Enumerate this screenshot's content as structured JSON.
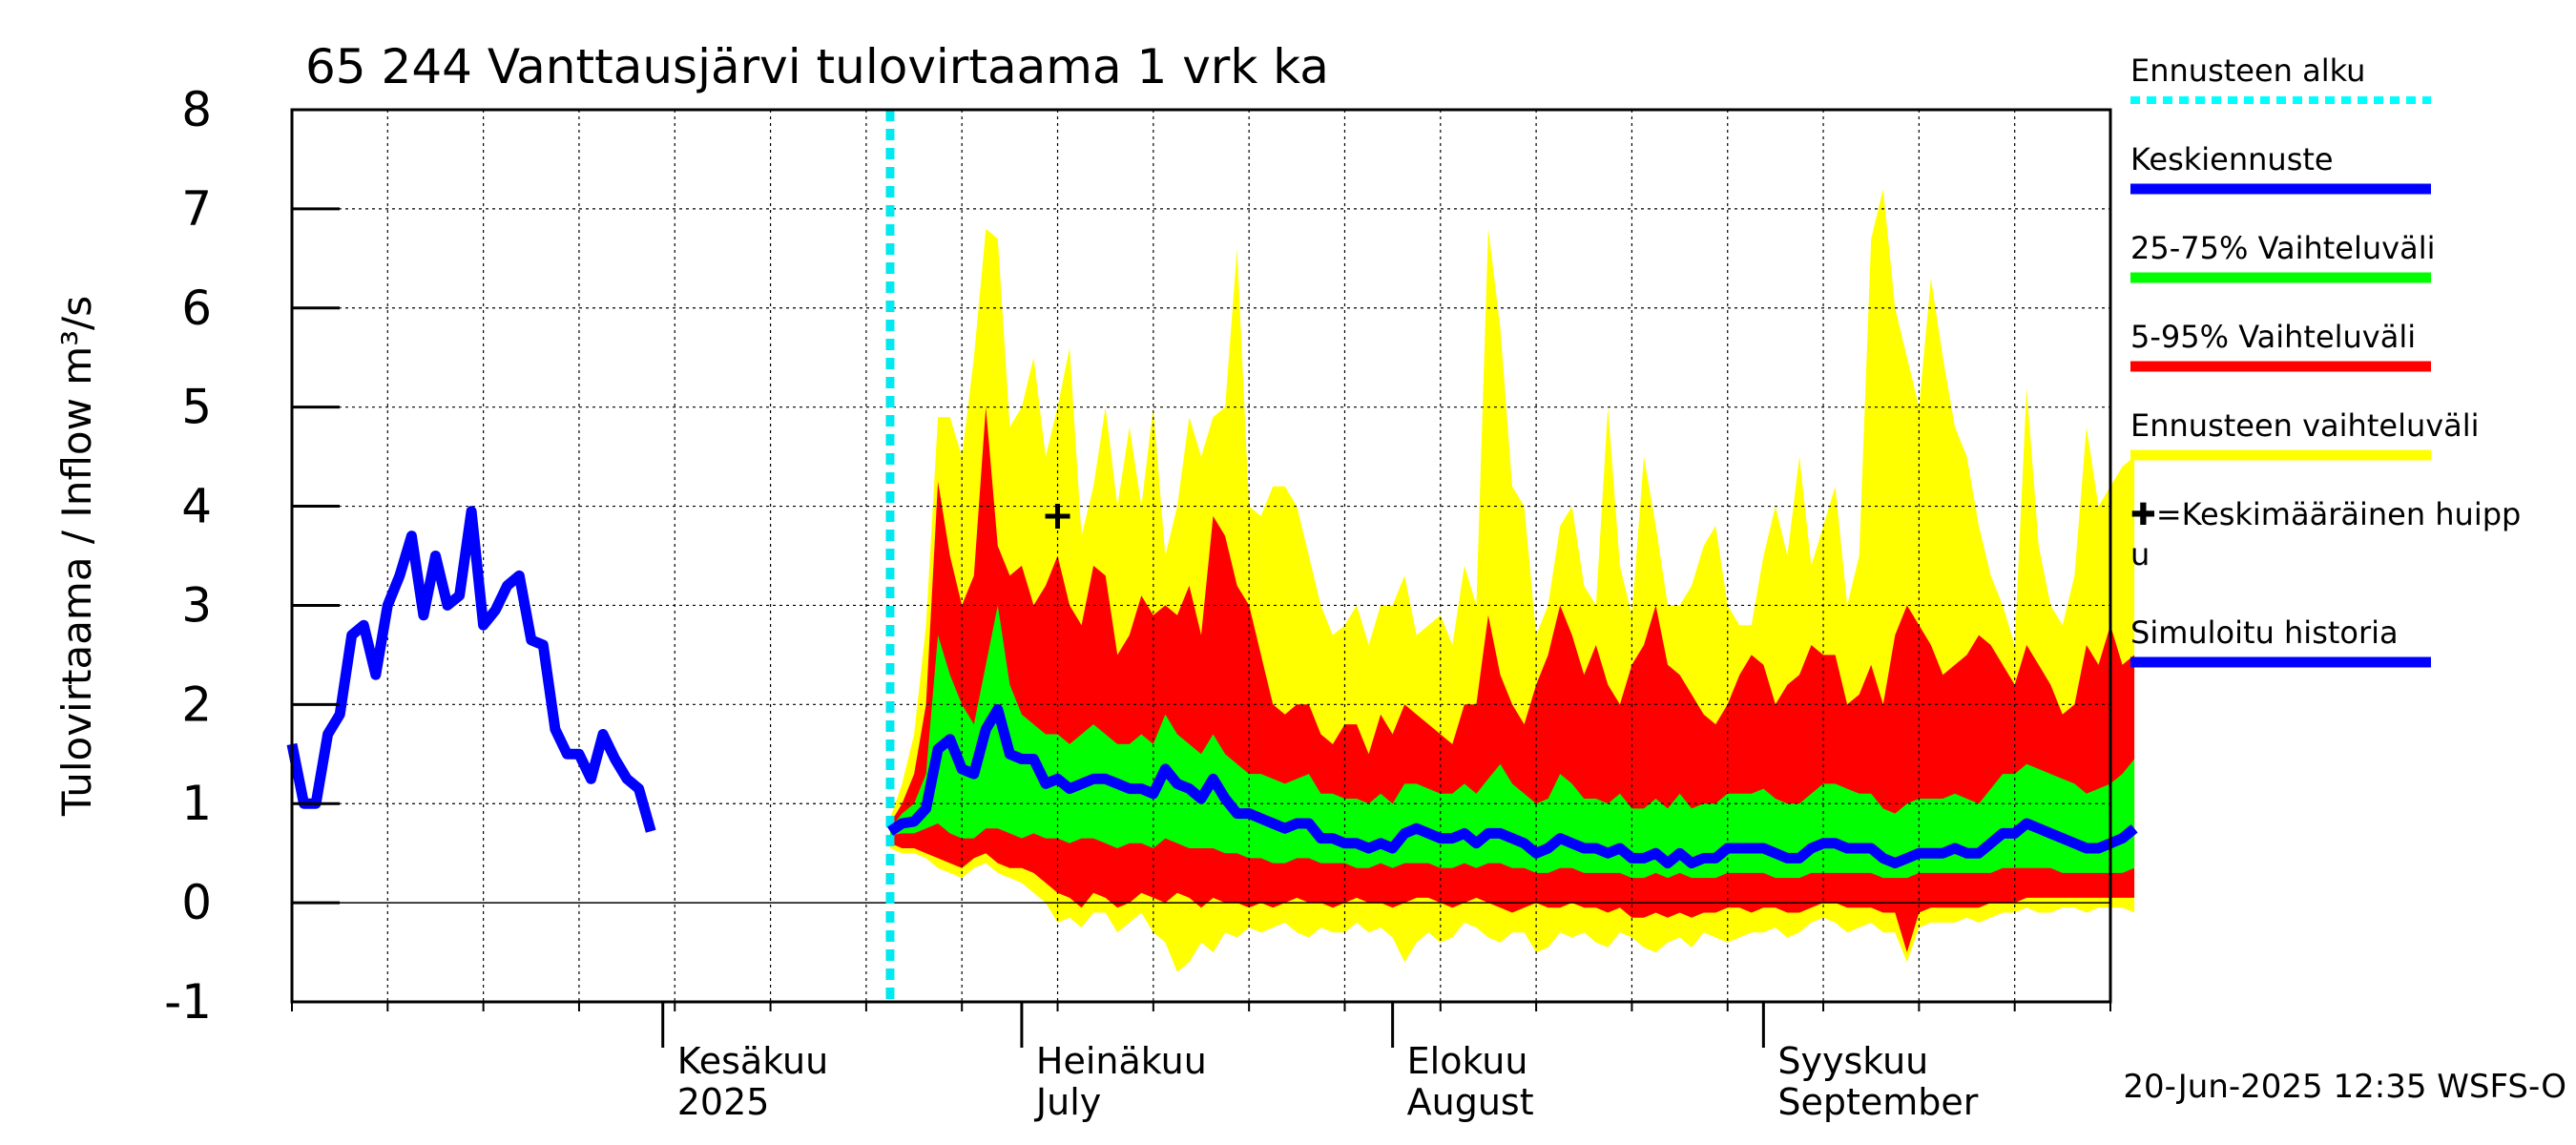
{
  "chart_data": {
    "type": "area",
    "title": "65 244 Vanttausjärvi tulovirtaama 1 vrk ka",
    "ylabel": "Tulovirtaama / Inflow    m³/s",
    "xlabel": "",
    "ylim": [
      -1,
      8
    ],
    "yticks": [
      -1,
      0,
      1,
      2,
      3,
      4,
      5,
      6,
      7,
      8
    ],
    "x_start": "2025-05-01",
    "x_end": "2025-09-30",
    "forecast_start": "2025-06-20",
    "month_labels": [
      {
        "top": "Kesäkuu",
        "bottom": "2025",
        "date": "2025-06-01"
      },
      {
        "top": "Heinäkuu",
        "bottom": "July",
        "date": "2025-07-01"
      },
      {
        "top": "Elokuu",
        "bottom": "August",
        "date": "2025-08-01"
      },
      {
        "top": "Syyskuu",
        "bottom": "September",
        "date": "2025-09-01"
      }
    ],
    "peak_marker": {
      "date": "2025-07-04",
      "value": 3.9
    },
    "history": {
      "name": "Simuloitu historia",
      "start": "2025-05-01",
      "values": [
        1.6,
        1.0,
        1.0,
        1.7,
        1.9,
        2.7,
        2.8,
        2.3,
        3.0,
        3.3,
        3.7,
        2.9,
        3.5,
        3.0,
        3.1,
        3.95,
        2.8,
        2.95,
        3.2,
        3.3,
        2.65,
        2.6,
        1.75,
        1.5,
        1.5,
        1.25,
        1.7,
        1.45,
        1.25,
        1.15,
        0.72
      ]
    },
    "forecast": {
      "start": "2025-06-20",
      "median": [
        0.72,
        0.8,
        0.82,
        0.95,
        1.55,
        1.65,
        1.35,
        1.3,
        1.75,
        1.95,
        1.5,
        1.45,
        1.45,
        1.2,
        1.25,
        1.15,
        1.2,
        1.25,
        1.25,
        1.2,
        1.15,
        1.15,
        1.1,
        1.35,
        1.2,
        1.15,
        1.05,
        1.25,
        1.05,
        0.9,
        0.9,
        0.85,
        0.8,
        0.75,
        0.8,
        0.8,
        0.65,
        0.65,
        0.6,
        0.6,
        0.55,
        0.6,
        0.55,
        0.7,
        0.75,
        0.7,
        0.65,
        0.65,
        0.7,
        0.6,
        0.7,
        0.7,
        0.65,
        0.6,
        0.5,
        0.55,
        0.65,
        0.6,
        0.55,
        0.55,
        0.5,
        0.55,
        0.45,
        0.45,
        0.5,
        0.4,
        0.5,
        0.4,
        0.45,
        0.45,
        0.55,
        0.55,
        0.55,
        0.55,
        0.5,
        0.45,
        0.45,
        0.55,
        0.6,
        0.6,
        0.55,
        0.55,
        0.55,
        0.45,
        0.4,
        0.45,
        0.5,
        0.5,
        0.5,
        0.55,
        0.5,
        0.5,
        0.6,
        0.7,
        0.7,
        0.8,
        0.75,
        0.7,
        0.65,
        0.6,
        0.55,
        0.55,
        0.6,
        0.65,
        0.75
      ],
      "p25": [
        0.68,
        0.7,
        0.7,
        0.75,
        0.8,
        0.7,
        0.65,
        0.65,
        0.75,
        0.75,
        0.7,
        0.65,
        0.7,
        0.65,
        0.65,
        0.6,
        0.65,
        0.65,
        0.6,
        0.55,
        0.6,
        0.6,
        0.55,
        0.65,
        0.6,
        0.55,
        0.55,
        0.55,
        0.5,
        0.5,
        0.45,
        0.45,
        0.4,
        0.4,
        0.45,
        0.45,
        0.4,
        0.4,
        0.4,
        0.35,
        0.35,
        0.4,
        0.35,
        0.4,
        0.4,
        0.4,
        0.35,
        0.35,
        0.4,
        0.35,
        0.4,
        0.4,
        0.35,
        0.35,
        0.3,
        0.3,
        0.35,
        0.35,
        0.3,
        0.3,
        0.3,
        0.3,
        0.25,
        0.25,
        0.3,
        0.25,
        0.3,
        0.25,
        0.25,
        0.25,
        0.3,
        0.3,
        0.3,
        0.3,
        0.25,
        0.25,
        0.25,
        0.3,
        0.3,
        0.3,
        0.3,
        0.3,
        0.3,
        0.25,
        0.25,
        0.25,
        0.3,
        0.3,
        0.3,
        0.3,
        0.3,
        0.3,
        0.3,
        0.35,
        0.35,
        0.35,
        0.35,
        0.35,
        0.3,
        0.3,
        0.3,
        0.3,
        0.3,
        0.3,
        0.35
      ],
      "p75": [
        0.75,
        0.9,
        1.0,
        1.3,
        2.7,
        2.3,
        2.0,
        1.8,
        2.4,
        3.0,
        2.2,
        1.9,
        1.8,
        1.7,
        1.7,
        1.6,
        1.7,
        1.8,
        1.7,
        1.6,
        1.6,
        1.7,
        1.6,
        1.9,
        1.7,
        1.6,
        1.5,
        1.7,
        1.5,
        1.4,
        1.3,
        1.3,
        1.25,
        1.2,
        1.25,
        1.3,
        1.1,
        1.1,
        1.05,
        1.05,
        1.0,
        1.1,
        1.0,
        1.2,
        1.2,
        1.15,
        1.1,
        1.1,
        1.2,
        1.1,
        1.25,
        1.4,
        1.2,
        1.1,
        1.0,
        1.05,
        1.3,
        1.2,
        1.05,
        1.05,
        1.0,
        1.1,
        0.95,
        0.95,
        1.05,
        0.95,
        1.1,
        0.95,
        1.0,
        1.0,
        1.1,
        1.1,
        1.1,
        1.15,
        1.05,
        1.0,
        1.0,
        1.1,
        1.2,
        1.2,
        1.15,
        1.1,
        1.1,
        0.95,
        0.9,
        1.0,
        1.05,
        1.05,
        1.05,
        1.1,
        1.05,
        1.0,
        1.15,
        1.3,
        1.3,
        1.4,
        1.35,
        1.3,
        1.25,
        1.2,
        1.1,
        1.15,
        1.2,
        1.3,
        1.45
      ],
      "p5": [
        0.6,
        0.55,
        0.55,
        0.5,
        0.45,
        0.4,
        0.35,
        0.45,
        0.5,
        0.4,
        0.35,
        0.35,
        0.3,
        0.2,
        0.1,
        0.05,
        -0.05,
        0.1,
        0.05,
        -0.05,
        0.0,
        0.1,
        0.05,
        0.0,
        0.1,
        0.05,
        -0.05,
        0.05,
        0.0,
        0.0,
        -0.05,
        0.0,
        -0.05,
        0.0,
        0.05,
        0.0,
        0.0,
        -0.05,
        0.0,
        0.05,
        0.0,
        0.0,
        -0.05,
        0.0,
        0.05,
        0.05,
        0.0,
        -0.05,
        0.0,
        0.05,
        0.0,
        -0.05,
        -0.1,
        -0.05,
        0.0,
        -0.05,
        -0.05,
        0.0,
        -0.05,
        -0.05,
        -0.1,
        -0.05,
        -0.15,
        -0.15,
        -0.1,
        -0.15,
        -0.1,
        -0.15,
        -0.1,
        -0.1,
        -0.05,
        -0.05,
        -0.1,
        -0.05,
        -0.05,
        -0.1,
        -0.1,
        -0.05,
        0.0,
        0.0,
        -0.05,
        -0.05,
        -0.05,
        -0.1,
        -0.1,
        -0.5,
        -0.1,
        -0.05,
        -0.05,
        -0.05,
        -0.05,
        -0.05,
        0.0,
        0.0,
        0.0,
        0.05,
        0.05,
        0.05,
        0.05,
        0.05,
        0.05,
        0.05,
        0.05,
        0.05,
        0.05
      ],
      "p95": [
        0.8,
        1.0,
        1.3,
        2.0,
        4.25,
        3.5,
        3.0,
        3.3,
        5.0,
        3.6,
        3.3,
        3.4,
        3.0,
        3.2,
        3.5,
        3.0,
        2.8,
        3.4,
        3.3,
        2.5,
        2.7,
        3.1,
        2.9,
        3.0,
        2.9,
        3.2,
        2.7,
        3.9,
        3.7,
        3.2,
        3.0,
        2.5,
        2.0,
        1.9,
        2.0,
        2.0,
        1.7,
        1.6,
        1.8,
        1.8,
        1.5,
        1.9,
        1.7,
        2.0,
        1.9,
        1.8,
        1.7,
        1.6,
        2.0,
        2.0,
        2.9,
        2.3,
        2.0,
        1.8,
        2.2,
        2.5,
        3.0,
        2.7,
        2.3,
        2.6,
        2.2,
        2.0,
        2.4,
        2.6,
        3.0,
        2.4,
        2.3,
        2.1,
        1.9,
        1.8,
        2.0,
        2.3,
        2.5,
        2.4,
        2.0,
        2.2,
        2.3,
        2.6,
        2.5,
        2.5,
        2.0,
        2.1,
        2.4,
        2.0,
        2.7,
        3.0,
        2.8,
        2.6,
        2.3,
        2.4,
        2.5,
        2.7,
        2.6,
        2.4,
        2.2,
        2.6,
        2.4,
        2.2,
        1.9,
        2.0,
        2.6,
        2.4,
        2.8,
        2.4,
        2.5
      ],
      "min": [
        0.55,
        0.5,
        0.5,
        0.45,
        0.35,
        0.3,
        0.25,
        0.35,
        0.4,
        0.3,
        0.25,
        0.2,
        0.1,
        0.0,
        -0.2,
        -0.15,
        -0.25,
        -0.1,
        -0.1,
        -0.3,
        -0.2,
        -0.1,
        -0.3,
        -0.4,
        -0.7,
        -0.6,
        -0.4,
        -0.5,
        -0.3,
        -0.35,
        -0.25,
        -0.3,
        -0.25,
        -0.2,
        -0.3,
        -0.35,
        -0.25,
        -0.3,
        -0.3,
        -0.2,
        -0.3,
        -0.25,
        -0.35,
        -0.6,
        -0.4,
        -0.3,
        -0.4,
        -0.35,
        -0.2,
        -0.25,
        -0.35,
        -0.4,
        -0.3,
        -0.3,
        -0.5,
        -0.45,
        -0.3,
        -0.35,
        -0.3,
        -0.4,
        -0.45,
        -0.3,
        -0.35,
        -0.45,
        -0.5,
        -0.4,
        -0.35,
        -0.45,
        -0.3,
        -0.35,
        -0.4,
        -0.35,
        -0.3,
        -0.3,
        -0.25,
        -0.35,
        -0.3,
        -0.2,
        -0.15,
        -0.2,
        -0.3,
        -0.25,
        -0.2,
        -0.3,
        -0.3,
        -0.6,
        -0.25,
        -0.2,
        -0.2,
        -0.2,
        -0.15,
        -0.2,
        -0.15,
        -0.1,
        -0.1,
        -0.05,
        -0.1,
        -0.1,
        -0.05,
        -0.05,
        -0.1,
        -0.05,
        -0.05,
        -0.05,
        -0.1
      ],
      "max": [
        0.85,
        1.2,
        1.7,
        2.8,
        4.9,
        4.9,
        4.5,
        5.5,
        6.8,
        6.7,
        4.8,
        5.0,
        5.5,
        4.5,
        5.0,
        5.6,
        3.7,
        4.2,
        5.0,
        4.0,
        4.8,
        4.0,
        5.0,
        3.5,
        4.0,
        4.9,
        4.5,
        4.9,
        5.0,
        6.6,
        4.0,
        3.9,
        4.2,
        4.2,
        4.0,
        3.5,
        3.0,
        2.7,
        2.8,
        3.0,
        2.6,
        3.0,
        3.0,
        3.3,
        2.7,
        2.8,
        2.9,
        2.6,
        3.4,
        3.0,
        6.8,
        5.8,
        4.2,
        4.0,
        2.7,
        3.0,
        3.8,
        4.0,
        3.2,
        3.0,
        5.0,
        3.4,
        2.9,
        4.5,
        3.8,
        3.0,
        3.0,
        3.2,
        3.6,
        3.8,
        3.0,
        2.8,
        2.8,
        3.5,
        4.0,
        3.5,
        4.5,
        3.4,
        3.8,
        4.2,
        3.0,
        3.5,
        6.7,
        7.2,
        6.0,
        5.5,
        5.0,
        6.3,
        5.5,
        4.8,
        4.5,
        3.8,
        3.3,
        3.0,
        2.6,
        5.2,
        3.6,
        3.0,
        2.8,
        3.3,
        4.8,
        4.0,
        4.2,
        4.4,
        4.5
      ]
    },
    "legend": [
      {
        "label": "Ennusteen alku",
        "color": "#00ffff",
        "style": "dotted"
      },
      {
        "label": "Keskiennuste",
        "color": "#0000ff",
        "style": "line"
      },
      {
        "label": "25-75% Vaihteluväli",
        "color": "#00ff00",
        "style": "line"
      },
      {
        "label": "5-95% Vaihteluväli",
        "color": "#ff0000",
        "style": "line"
      },
      {
        "label": "Ennusteen vaihteluväli",
        "color": "#ffff00",
        "style": "line"
      },
      {
        "label": "✚=Keskimääräinen huipp\nu",
        "color": "#000000",
        "style": "none"
      },
      {
        "label": "Simuloitu historia",
        "color": "#0000ff",
        "style": "line"
      }
    ],
    "footer": "20-Jun-2025 12:35 WSFS-O"
  }
}
